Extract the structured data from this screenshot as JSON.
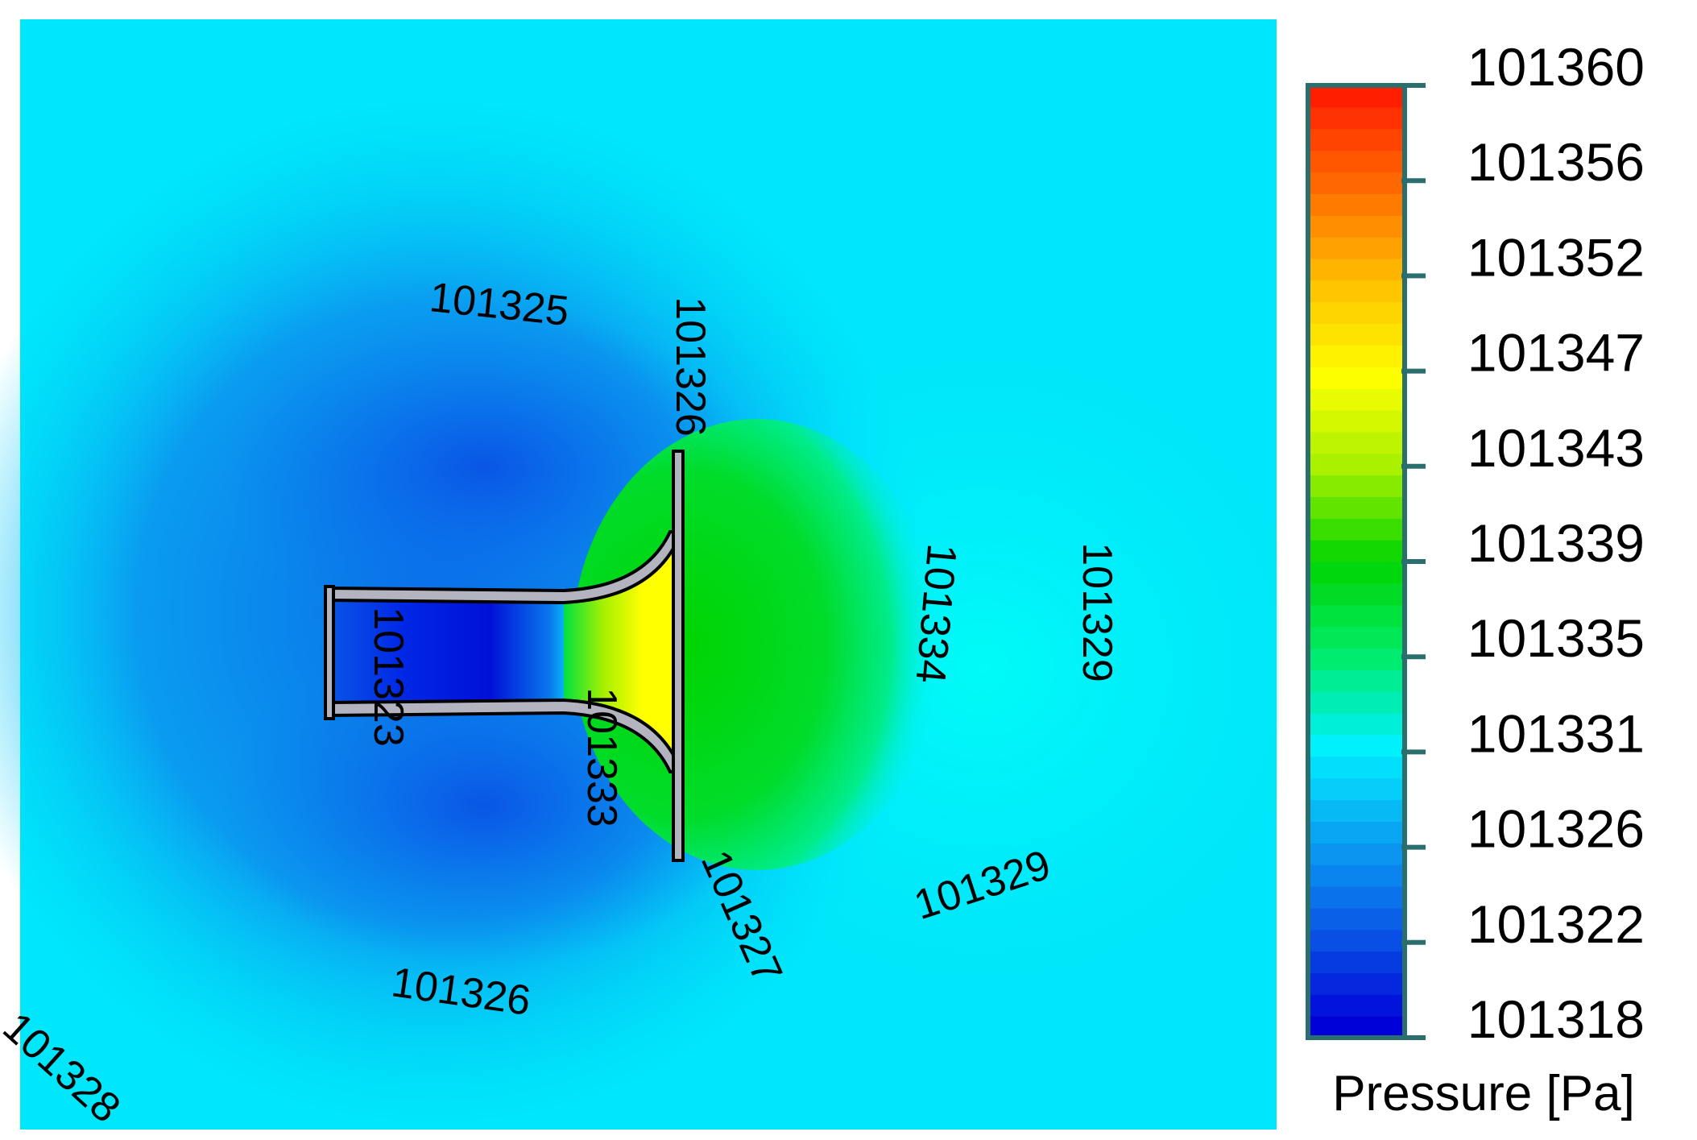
{
  "chart_data": {
    "type": "heatmap",
    "quantity": "Pressure",
    "unit": "Pa",
    "legend_title": "Pressure [Pa]",
    "colormap": [
      "#0000d8",
      "#0a55e6",
      "#0aa0f2",
      "#00f0ff",
      "#00ec6a",
      "#00d400",
      "#a6f000",
      "#ffff00",
      "#ffc000",
      "#ff6e00",
      "#ff1e00"
    ],
    "colorbar_ticks": [
      "101360",
      "101356",
      "101352",
      "101347",
      "101343",
      "101339",
      "101335",
      "101331",
      "101326",
      "101322",
      "101318"
    ],
    "range": [
      101318,
      101360
    ],
    "contour_labels": [
      {
        "text": "101325",
        "value": 101325
      },
      {
        "text": "101326",
        "value": 101326
      },
      {
        "text": "101323",
        "value": 101323
      },
      {
        "text": "101333",
        "value": 101333
      },
      {
        "text": "101334",
        "value": 101334
      },
      {
        "text": "101329",
        "value": 101329
      },
      {
        "text": "101329",
        "value": 101329
      },
      {
        "text": "101327",
        "value": 101327
      },
      {
        "text": "101326",
        "value": 101326
      },
      {
        "text": "101328",
        "value": 101328
      }
    ]
  }
}
